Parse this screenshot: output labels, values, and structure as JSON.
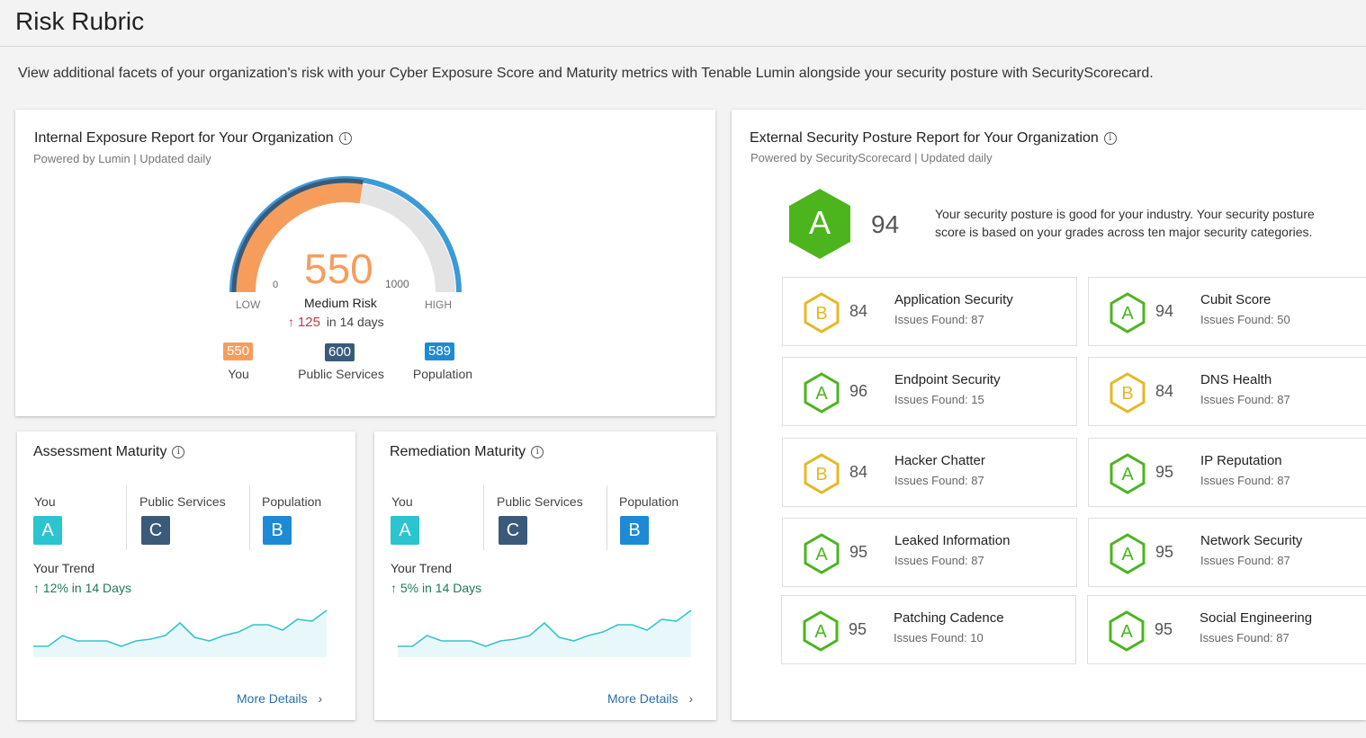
{
  "page": {
    "title": "Risk Rubric",
    "intro": "View additional facets of your organization's risk with your Cyber Exposure Score and Maturity metrics with Tenable Lumin alongside your security posture with SecurityScorecard."
  },
  "internal": {
    "title": "Internal Exposure Report for Your Organization",
    "info_icon": "i",
    "subtitle": "Powered by Lumin  |  Updated daily",
    "gauge": {
      "score": "550",
      "score_value": 550,
      "max_value": 1000,
      "min_label": "0",
      "max_label": "1000",
      "low_label": "LOW",
      "high_label": "HIGH",
      "risk_label": "Medium Risk",
      "change_arrow": "↑",
      "change_value": "125",
      "change_period": "in 14 days"
    },
    "chips": [
      {
        "value": "550",
        "label": "You",
        "color": "#f79d5c"
      },
      {
        "value": "600",
        "label": "Public Services",
        "color": "#3a5a7a"
      },
      {
        "value": "589",
        "label": "Population",
        "color": "#1e8ad6"
      }
    ]
  },
  "assessment": {
    "title": "Assessment Maturity",
    "you_label": "You",
    "you_grade": "A",
    "public_label": "Public Services",
    "public_grade": "C",
    "pop_label": "Population",
    "pop_grade": "B",
    "trend_title": "Your Trend",
    "trend_value": "↑ 12%  in 14  Days",
    "trend_points": [
      0,
      0,
      3,
      1.5,
      1.5,
      1.5,
      0,
      1.5,
      2,
      3,
      6.5,
      2.5,
      1.5,
      3,
      4,
      6,
      6,
      4.5,
      7.5,
      7,
      10
    ],
    "more_label": "More Details",
    "more_icon": "›"
  },
  "remediation": {
    "title": "Remediation Maturity",
    "you_label": "You",
    "you_grade": "A",
    "public_label": "Public Services",
    "public_grade": "C",
    "pop_label": "Population",
    "pop_grade": "B",
    "trend_title": "Your Trend",
    "trend_value": "↑ 5%  in 14  Days",
    "trend_points": [
      0,
      0,
      3,
      1.5,
      1.5,
      1.5,
      0,
      1.5,
      2,
      3,
      6.5,
      2.5,
      1.5,
      3,
      4,
      6,
      6,
      4.5,
      7.5,
      7,
      10
    ],
    "more_label": "More Details",
    "more_icon": "›"
  },
  "external": {
    "title": "External Security Posture Report for Your Organization",
    "subtitle": "Powered by SecurityScorecard  |  Updated daily",
    "overall_grade": "A",
    "overall_score": "94",
    "summary_line1": "Your security posture is good for your industry. Your security posture",
    "summary_line2": "score is based on your grades across ten major security categories.",
    "categories": [
      {
        "grade": "B",
        "score": "84",
        "name": "Application Security",
        "issues": "Issues Found: 87"
      },
      {
        "grade": "A",
        "score": "94",
        "name": "Cubit Score",
        "issues": "Issues Found: 50"
      },
      {
        "grade": "A",
        "score": "96",
        "name": "Endpoint Security",
        "issues": "Issues Found: 15"
      },
      {
        "grade": "B",
        "score": "84",
        "name": "DNS Health",
        "issues": "Issues Found: 87"
      },
      {
        "grade": "B",
        "score": "84",
        "name": "Hacker Chatter",
        "issues": "Issues Found: 87"
      },
      {
        "grade": "A",
        "score": "95",
        "name": "IP Reputation",
        "issues": "Issues Found: 87"
      },
      {
        "grade": "A",
        "score": "95",
        "name": "Leaked Information",
        "issues": "Issues Found: 87"
      },
      {
        "grade": "A",
        "score": "95",
        "name": "Network Security",
        "issues": "Issues Found: 87"
      },
      {
        "grade": "A",
        "score": "95",
        "name": "Patching Cadence",
        "issues": "Issues Found: 10"
      },
      {
        "grade": "A",
        "score": "95",
        "name": "Social Engineering",
        "issues": "Issues Found: 87"
      }
    ]
  },
  "colors": {
    "grade_a": "#4cb51e",
    "grade_b": "#e6b822",
    "teal": "#2bc4cf",
    "slate": "#3a5a7a",
    "blue": "#1e8ad6",
    "orange": "#f79d5c"
  }
}
